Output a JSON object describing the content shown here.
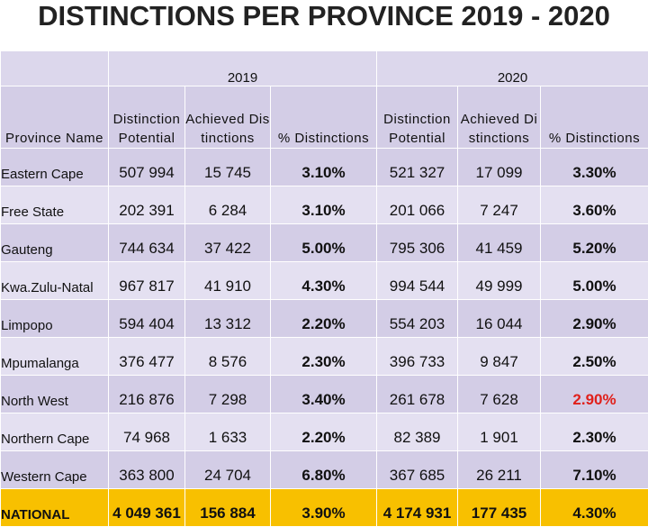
{
  "title": "DISTINCTIONS PER PROVINCE 2019 - 2020",
  "table": {
    "years": [
      "2019",
      "2020"
    ],
    "headers": [
      "Province Name",
      "Distinction Potential",
      "Achieved Distinctions",
      "% Distinctions",
      "Distinction Potential",
      "Achieved Distinctions",
      "% Distinctions"
    ],
    "rows": [
      [
        "Eastern Cape",
        "507 994",
        "15 745",
        "3.10%",
        "521 327",
        "17 099",
        "3.30%"
      ],
      [
        "Free State",
        "202 391",
        "6 284",
        "3.10%",
        "201 066",
        "7 247",
        "3.60%"
      ],
      [
        "Gauteng",
        "744 634",
        "37 422",
        "5.00%",
        "795 306",
        "41 459",
        "5.20%"
      ],
      [
        "Kwa.Zulu-Natal",
        "967 817",
        "41 910",
        "4.30%",
        "994 544",
        "49 999",
        "5.00%"
      ],
      [
        "Limpopo",
        "594 404",
        "13 312",
        "2.20%",
        "554 203",
        "16 044",
        "2.90%"
      ],
      [
        "Mpumalanga",
        "376 477",
        "8 576",
        "2.30%",
        "396 733",
        "9 847",
        "2.50%"
      ],
      [
        "North West",
        "216 876",
        "7 298",
        "3.40%",
        "261 678",
        "7 628",
        "2.90%"
      ],
      [
        "Northern Cape",
        "74 968",
        "1 633",
        "2.20%",
        "82 389",
        "1 901",
        "2.30%"
      ],
      [
        "Western Cape",
        "363 800",
        "24 704",
        "6.80%",
        "367 685",
        "26 211",
        "7.10%"
      ],
      [
        "NATIONAL",
        "4 049 361",
        "156 884",
        "3.90%",
        "4 174 931",
        "177 435",
        "4.30%"
      ]
    ]
  }
}
